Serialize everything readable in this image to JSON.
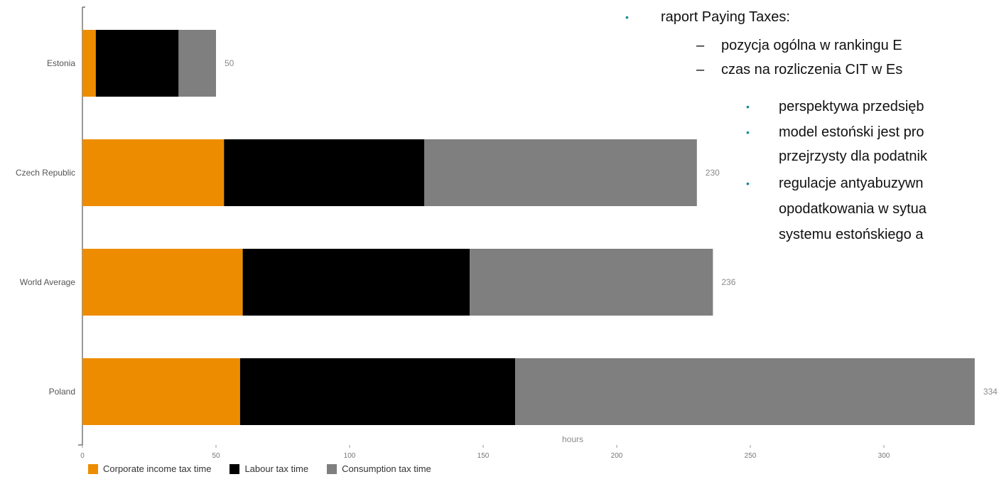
{
  "chart_data": {
    "type": "bar",
    "orientation": "horizontal",
    "stacked": true,
    "categories": [
      "Estonia",
      "Czech Republic",
      "World Average",
      "Poland"
    ],
    "series": [
      {
        "name": "Corporate income tax time",
        "color": "#ee8c00",
        "values": [
          5,
          53,
          60,
          59
        ]
      },
      {
        "name": "Labour tax time",
        "color": "#000000",
        "values": [
          31,
          75,
          85,
          103
        ]
      },
      {
        "name": "Consumption tax time",
        "color": "#7f7f7f",
        "values": [
          14,
          102,
          91,
          172
        ]
      }
    ],
    "totals": [
      50,
      230,
      236,
      334
    ],
    "xlabel": "hours",
    "xlim": [
      0,
      340
    ],
    "xticks": [
      0,
      50,
      100,
      150,
      200,
      250,
      300
    ],
    "legend_position": "bottom-left",
    "grid": false
  },
  "bullets": [
    {
      "level": 1,
      "marker": "•",
      "text": "raport Paying Taxes:"
    },
    {
      "level": 2,
      "marker": "–",
      "text": "pozycja ogólna w rankingu E"
    },
    {
      "level": 2,
      "marker": "–",
      "text": "czas na rozliczenia CIT w Es"
    },
    {
      "level": 3,
      "marker": "•",
      "text": "perspektywa przedsięb"
    },
    {
      "level": 3,
      "marker": "•",
      "text": "model estoński jest pro",
      "continuation": "przejrzysty dla podatnik"
    },
    {
      "level": 3,
      "marker": "•",
      "text": "regulacje antyabuzywn",
      "continuation": "opodatkowania w sytua",
      "continuation2": "systemu estońskiego a"
    }
  ]
}
